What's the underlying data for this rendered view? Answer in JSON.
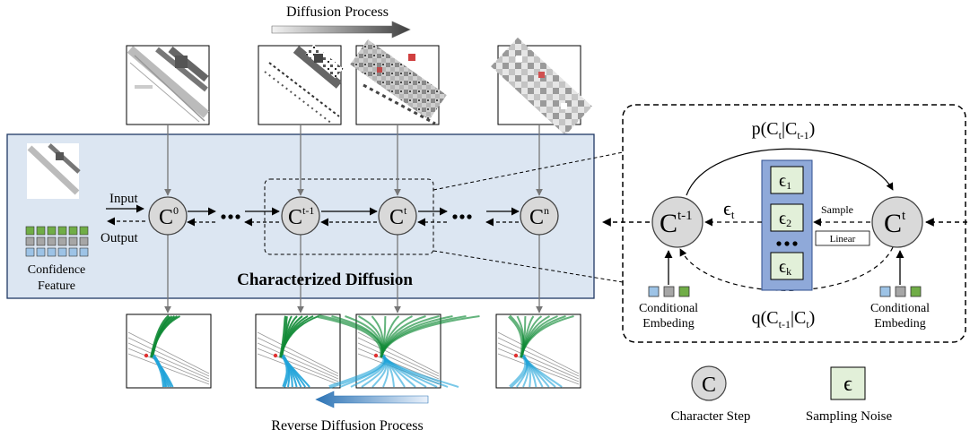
{
  "top": {
    "title": "Diffusion Process"
  },
  "bottom": {
    "title": "Reverse Diffusion Process"
  },
  "panel": {
    "title": "Characterized Diffusion",
    "input_label": "Input",
    "output_label": "Output",
    "confidence_line1": "Confidence",
    "confidence_line2": "Feature"
  },
  "nodes": [
    {
      "base": "C",
      "sup": "0"
    },
    {
      "base": "C",
      "sup": "t-1"
    },
    {
      "base": "C",
      "sup": "t"
    },
    {
      "base": "C",
      "sup": "n"
    }
  ],
  "detail": {
    "p_label": "p(C",
    "p_sub1": "t",
    "p_mid": "|C",
    "p_sub2": "t-1",
    "p_end": ")",
    "q_label": "q(C",
    "q_sub1": "t-1",
    "q_mid": "|C",
    "q_sub2": "t",
    "q_end": ")",
    "eps_t": "ϵ",
    "eps_t_sub": "t",
    "sample_label": "Sample",
    "linear_label": "Linear",
    "eps_items": [
      {
        "sym": "ϵ",
        "sub": "1"
      },
      {
        "sym": "ϵ",
        "sub": "2"
      },
      {
        "sym": "ϵ",
        "sub": "k"
      }
    ],
    "left_node": {
      "base": "C",
      "sup": "t-1"
    },
    "right_node": {
      "base": "C",
      "sup": "t"
    },
    "cond_line1": "Conditional",
    "cond_line2": "Embeding"
  },
  "legend": {
    "char_symbol": "C",
    "char_label": "Character Step",
    "noise_symbol": "ϵ",
    "noise_label": "Sampling Noise"
  },
  "colors": {
    "panel_fill": "#dce6f2",
    "panel_stroke": "#1f3864",
    "node_fill": "#d9d9d9",
    "eps_column": "#8fa9d9",
    "eps_cell": "#e2f0d9",
    "green": "#70ad47",
    "blue": "#9dc3e6",
    "gray": "#a6a6a6",
    "traj_green": "#0f8a35",
    "traj_blue": "#1fa3d9"
  }
}
